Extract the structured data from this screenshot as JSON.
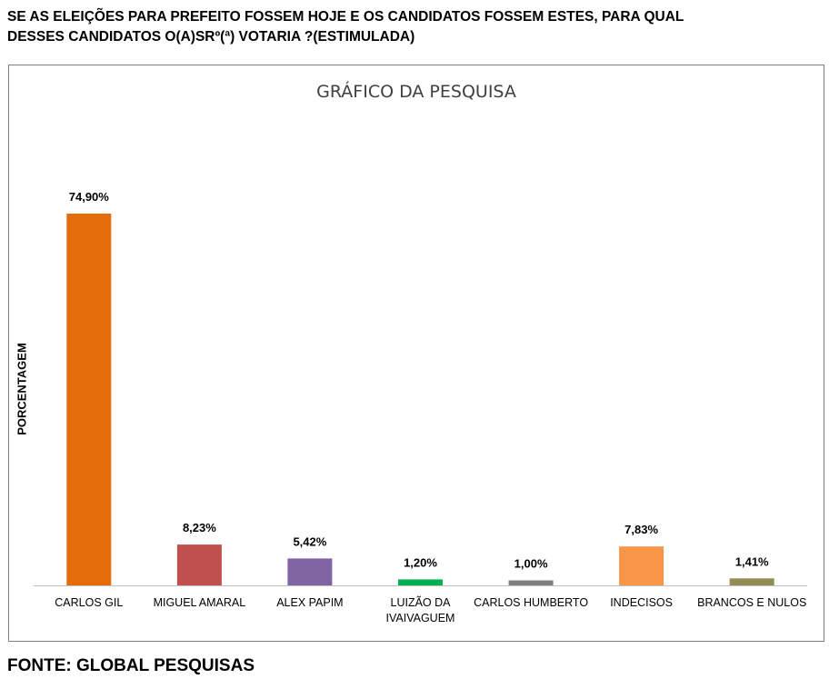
{
  "question": "SE AS ELEIÇÕES PARA PREFEITO FOSSEM HOJE E OS CANDIDATOS FOSSEM ESTES, PARA QUAL\nDESSES CANDIDATOS O(A)SRº(ª) VOTARIA ?(ESTIMULADA)",
  "source": "FONTE: GLOBAL PESQUISAS",
  "chart_data": {
    "type": "bar",
    "title": "GRÁFICO DA PESQUISA",
    "xlabel": "",
    "ylabel": "PORCENTAGEM",
    "ylim": [
      0,
      100
    ],
    "grid": false,
    "categories": [
      [
        "CARLOS GIL"
      ],
      [
        "MIGUEL AMARAL"
      ],
      [
        "ALEX PAPIM"
      ],
      [
        "LUIZÃO DA",
        "IVAIVAGUEM"
      ],
      [
        "CARLOS HUMBERTO"
      ],
      [
        "INDECISOS"
      ],
      [
        "BRANCOS E NULOS"
      ]
    ],
    "values": [
      74.9,
      8.23,
      5.42,
      1.2,
      1.0,
      7.83,
      1.41
    ],
    "value_labels": [
      "74,90%",
      "8,23%",
      "5,42%",
      "1,20%",
      "1,00%",
      "7,83%",
      "1,41%"
    ],
    "colors": [
      "#E46C0A",
      "#C0504D",
      "#8064A2",
      "#00B050",
      "#7F7F7F",
      "#F79646",
      "#948A54"
    ]
  }
}
